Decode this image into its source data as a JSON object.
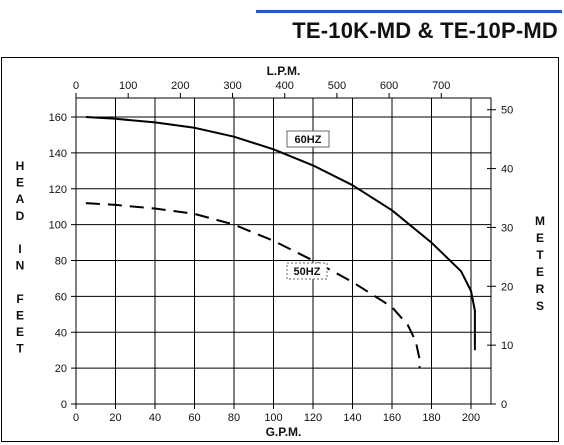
{
  "title": "TE-10K-MD & TE-10P-MD",
  "chart_data": {
    "type": "line",
    "title": "",
    "xlabel": "G.P.M.",
    "ylabel": "HEAD IN FEET",
    "x2label": "L.P.M.",
    "y2label": "METERS",
    "xlim": [
      0,
      210
    ],
    "ylim": [
      0,
      170
    ],
    "x2lim": [
      0,
      795
    ],
    "y2lim": [
      0,
      51.8
    ],
    "x_ticks": [
      0,
      20,
      40,
      60,
      80,
      100,
      120,
      140,
      160,
      180,
      200
    ],
    "y_ticks": [
      0,
      20,
      40,
      60,
      80,
      100,
      120,
      140,
      160
    ],
    "x2_ticks": [
      0,
      100,
      200,
      300,
      400,
      500,
      600,
      700
    ],
    "y2_ticks": [
      0,
      10,
      20,
      30,
      40,
      50
    ],
    "grid": true,
    "series": [
      {
        "name": "60HZ",
        "style": "solid",
        "x": [
          5,
          20,
          40,
          60,
          80,
          100,
          120,
          140,
          160,
          180,
          195,
          200,
          202,
          202
        ],
        "y": [
          160,
          159,
          157,
          154,
          149,
          142,
          133,
          122,
          108,
          90,
          74,
          63,
          52,
          30
        ]
      },
      {
        "name": "50HZ",
        "style": "dashed",
        "x": [
          5,
          20,
          40,
          60,
          80,
          100,
          120,
          140,
          160,
          168,
          172,
          174,
          174
        ],
        "y": [
          112,
          111,
          109,
          106,
          100,
          91,
          80,
          68,
          54,
          44,
          35,
          25,
          20
        ]
      }
    ]
  }
}
